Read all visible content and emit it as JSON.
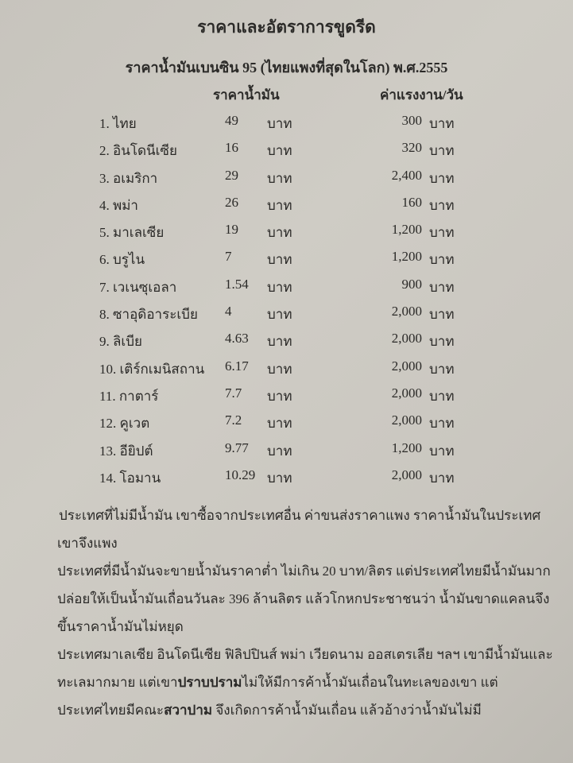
{
  "title": "ราคาและอัตราการขูดรีด",
  "subtitle": "ราคาน้ำมันเบนซิน 95  (ไทยแพงที่สุดในโลก) พ.ศ.2555",
  "headers": {
    "price": "ราคาน้ำมัน",
    "wage": "ค่าแรงงาน/วัน"
  },
  "rows": [
    {
      "country": "1.  ไทย",
      "price": "49",
      "price_unit": "บาท",
      "wage": "300",
      "wage_unit": "บาท"
    },
    {
      "country": "2.  อินโดนีเซีย",
      "price": "16",
      "price_unit": "บาท",
      "wage": "320",
      "wage_unit": "บาท"
    },
    {
      "country": "3.  อเมริกา",
      "price": "29",
      "price_unit": "บาท",
      "wage": "2,400",
      "wage_unit": "บาท"
    },
    {
      "country": "4.  พม่า",
      "price": "26",
      "price_unit": "บาท",
      "wage": "160",
      "wage_unit": "บาท"
    },
    {
      "country": "5.  มาเลเซีย",
      "price": "19",
      "price_unit": "บาท",
      "wage": "1,200",
      "wage_unit": "บาท"
    },
    {
      "country": "6.  บรูไน",
      "price": "7",
      "price_unit": "บาท",
      "wage": "1,200",
      "wage_unit": "บาท"
    },
    {
      "country": "7.  เวเนซุเอลา",
      "price": "1.54",
      "price_unit": "บาท",
      "wage": "900",
      "wage_unit": "บาท"
    },
    {
      "country": "8.  ซาอุดิอาระเบีย",
      "price": "4",
      "price_unit": "บาท",
      "wage": "2,000",
      "wage_unit": "บาท"
    },
    {
      "country": "9.  ลิเบีย",
      "price": "4.63",
      "price_unit": "บาท",
      "wage": "2,000",
      "wage_unit": "บาท"
    },
    {
      "country": "10. เติร์กเมนิสถาน",
      "price": "6.17",
      "price_unit": "บาท",
      "wage": "2,000",
      "wage_unit": "บาท"
    },
    {
      "country": "11. กาตาร์",
      "price": "7.7",
      "price_unit": "บาท",
      "wage": "2,000",
      "wage_unit": "บาท"
    },
    {
      "country": "12. คูเวต",
      "price": "7.2",
      "price_unit": "บาท",
      "wage": "2,000",
      "wage_unit": "บาท"
    },
    {
      "country": "13. อียิปต์",
      "price": "9.77",
      "price_unit": "บาท",
      "wage": "1,200",
      "wage_unit": "บาท"
    },
    {
      "country": "14. โอมาน",
      "price": "10.29",
      "price_unit": "บาท",
      "wage": "2,000",
      "wage_unit": "บาท"
    }
  ],
  "paragraphs": {
    "p1": "ประเทศที่ไม่มีน้ำมัน เขาซื้อจากประเทศอื่น ค่าขนส่งราคาแพง ราคาน้ำมันในประเทศเขาจึงแพง",
    "p2": "ประเทศที่มีน้ำมันจะขายน้ำมันราคาต่ำ ไม่เกิน 20 บาท/ลิตร แต่ประเทศไทยมีน้ำมันมาก ปล่อยให้เป็นน้ำมันเถื่อนวันละ 396 ล้านลิตร แล้วโกหกประชาชนว่า น้ำมันขาดแคลนจึงขึ้นราคาน้ำมันไม่หยุด",
    "p3_a": "ประเทศมาเลเซีย อินโดนีเซีย ฟิลิปปินส์ พม่า เวียดนาม ออสเตรเลีย ฯลฯ เขามีน้ำมันและทะเลมากมาย  แต่เขา",
    "p3_bold1": "ปราบปราม",
    "p3_b": "ไม่ให้มีการค้าน้ำมันเถื่อนในทะเลของเขา  แต่ประเทศไทยมีคณะ",
    "p3_bold2": "สวาปาม",
    "p3_c": " จึงเกิดการค้าน้ำมันเถื่อน แล้วอ้างว่าน้ำมันไม่มี"
  }
}
